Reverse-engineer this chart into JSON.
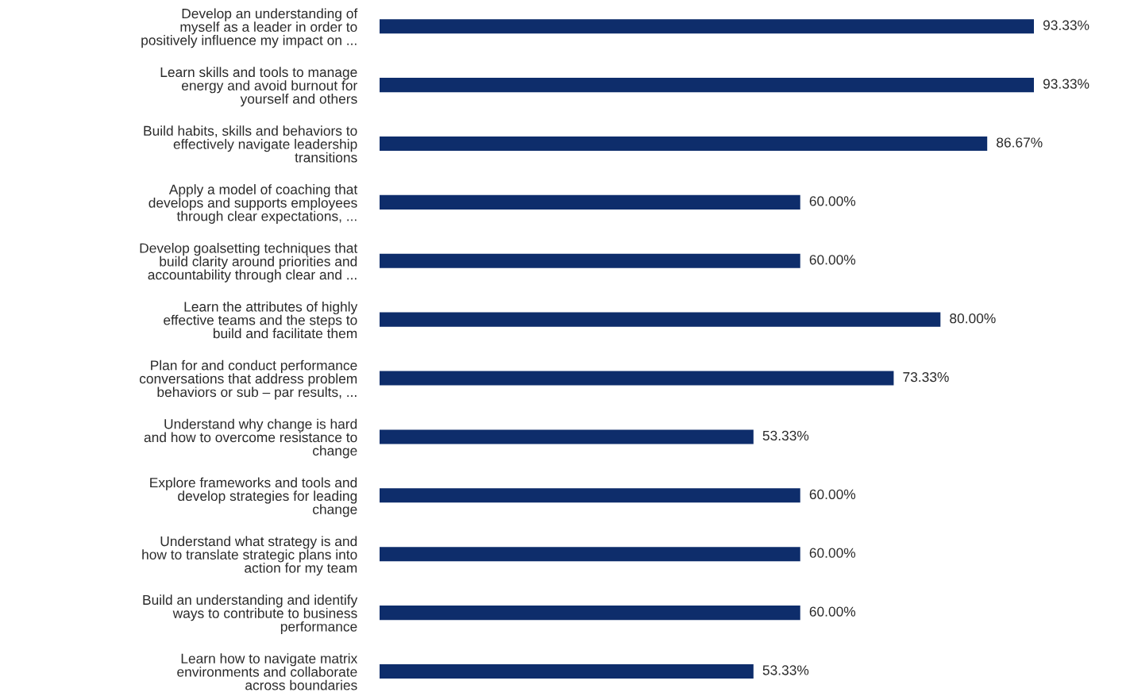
{
  "chart_data": {
    "type": "bar",
    "orientation": "horizontal",
    "categories": [
      "Develop an understanding of\nmyself as a leader in order to\npositively influence my impact on ...",
      "Learn skills and tools to manage\nenergy and avoid burnout for\nyourself and others",
      "Build habits, skills and behaviors to\neffectively navigate leadership\ntransitions",
      "Apply a model of coaching that\ndevelops and supports employees\nthrough clear expectations, ...",
      "Develop goalsetting techniques that\nbuild clarity around priorities and\naccountability through clear and ...",
      "Learn the attributes of highly\neffective teams and the steps to\nbuild and facilitate them",
      "Plan for and conduct performance\nconversations that address problem\nbehaviors or sub – par results, ...",
      "Understand why change is hard\nand how to overcome resistance to\nchange",
      "Explore frameworks and tools and\ndevelop strategies for leading\nchange",
      "Understand what strategy is and\nhow to translate strategic plans into\naction for my team",
      "Build an understanding and identify\nways to contribute to business\nperformance",
      "Learn how to navigate matrix\nenvironments and collaborate\nacross boundaries"
    ],
    "values": [
      93.33,
      93.33,
      86.67,
      60.0,
      60.0,
      80.0,
      73.33,
      53.33,
      60.0,
      60.0,
      60.0,
      53.33
    ],
    "value_labels": [
      "93.33%",
      "93.33%",
      "86.67%",
      "60.00%",
      "60.00%",
      "80.00%",
      "73.33%",
      "53.33%",
      "60.00%",
      "60.00%",
      "60.00%",
      "53.33%"
    ],
    "color": "#0e2d6b",
    "tick_labels": "y"
  }
}
